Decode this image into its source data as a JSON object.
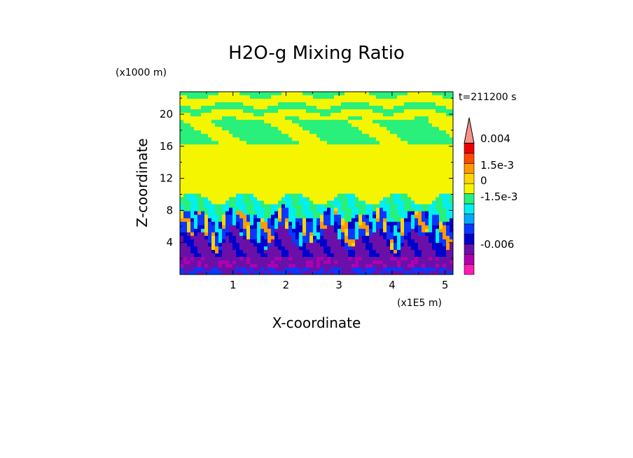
{
  "chart_data": {
    "type": "heatmap",
    "title": "H2O-g Mixing Ratio",
    "xlabel": "X-coordinate",
    "ylabel": "Z-coordinate",
    "x_scale_label": "(x1E5 m)",
    "y_scale_label": "(x1000 m)",
    "time_label": "t=211200 s",
    "xlim": [
      0,
      5.15
    ],
    "ylim": [
      0,
      22.8
    ],
    "x_ticks": [
      "1",
      "2",
      "3",
      "4",
      "5"
    ],
    "y_ticks": [
      "4",
      "8",
      "12",
      "16",
      "20"
    ],
    "colorbar": {
      "colors": [
        "#ff1ab3",
        "#b000b0",
        "#6a10a8",
        "#0000cc",
        "#0a36ff",
        "#00a8ff",
        "#00f0f0",
        "#28f07a",
        "#f5f500",
        "#ffd600",
        "#ff9a00",
        "#ff4a00",
        "#ee0000",
        "#f7918a"
      ],
      "labels": [
        "0.004",
        "1.5e-3",
        "0",
        "-1.5e-3",
        "-0.006"
      ]
    }
  }
}
